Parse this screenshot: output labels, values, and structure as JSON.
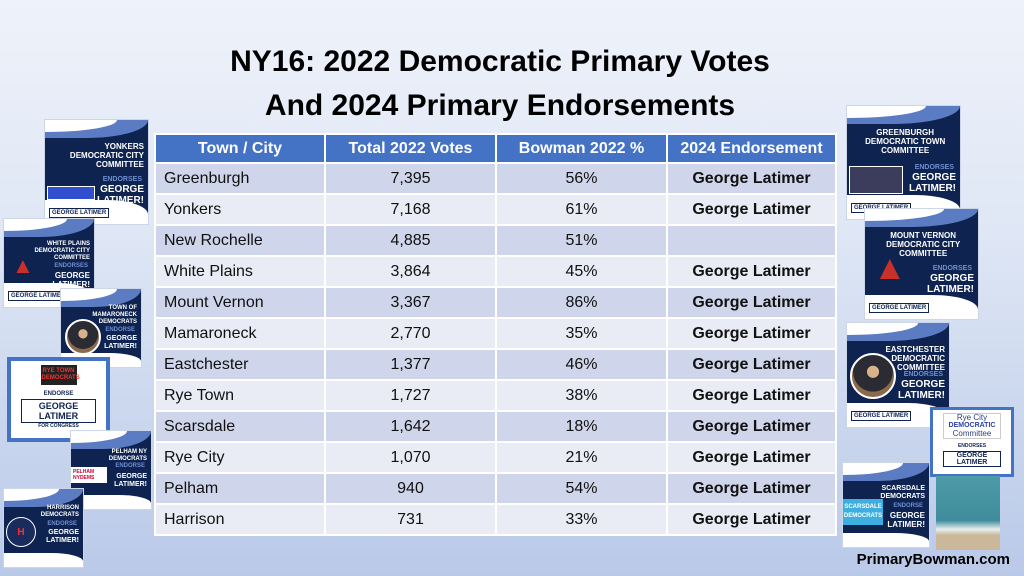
{
  "title_line1": "NY16: 2022 Democratic Primary Votes",
  "title_line2": "And 2024 Primary Endorsements",
  "table": {
    "headers": [
      "Town / City",
      "Total 2022 Votes",
      "Bowman 2022 %",
      "2024 Endorsement"
    ],
    "rows": [
      {
        "town": "Greenburgh",
        "votes": "7,395",
        "pct": "56%",
        "endorsement": "George Latimer"
      },
      {
        "town": "Yonkers",
        "votes": "7,168",
        "pct": "61%",
        "endorsement": "George Latimer"
      },
      {
        "town": "New Rochelle",
        "votes": "4,885",
        "pct": "51%",
        "endorsement": ""
      },
      {
        "town": "White Plains",
        "votes": "3,864",
        "pct": "45%",
        "endorsement": "George Latimer"
      },
      {
        "town": "Mount Vernon",
        "votes": "3,367",
        "pct": "86%",
        "endorsement": "George Latimer"
      },
      {
        "town": "Mamaroneck",
        "votes": "2,770",
        "pct": "35%",
        "endorsement": "George Latimer"
      },
      {
        "town": "Eastchester",
        "votes": "1,377",
        "pct": "46%",
        "endorsement": "George Latimer"
      },
      {
        "town": "Rye Town",
        "votes": "1,727",
        "pct": "38%",
        "endorsement": "George Latimer"
      },
      {
        "town": "Scarsdale",
        "votes": "1,642",
        "pct": "18%",
        "endorsement": "George Latimer"
      },
      {
        "town": "Rye City",
        "votes": "1,070",
        "pct": "21%",
        "endorsement": "George Latimer"
      },
      {
        "town": "Pelham",
        "votes": "940",
        "pct": "54%",
        "endorsement": "George Latimer"
      },
      {
        "town": "Harrison",
        "votes": "731",
        "pct": "33%",
        "endorsement": "George Latimer"
      }
    ]
  },
  "flyers": {
    "yonkers": {
      "org": "YONKERS DEMOCRATIC CITY COMMITTEE",
      "verb": "ENDORSES",
      "name": "GEORGE LATIMER!",
      "logo": "GEORGE LATIMER"
    },
    "white_plains": {
      "org": "WHITE PLAINS DEMOCRATIC CITY COMMITTEE",
      "verb": "ENDORSES",
      "name": "GEORGE LATIMER!",
      "logo": "GEORGE LATIMER"
    },
    "mamaroneck": {
      "org": "TOWN OF MAMARONECK DEMOCRATS",
      "verb": "ENDORSE",
      "name": "GEORGE LATIMER!",
      "logo": "GEORGE LATIMER"
    },
    "rye_town": {
      "org": "RYE TOWN DEMOCRATS",
      "verb": "ENDORSE",
      "name": "GEORGE LATIMER",
      "sub": "FOR CONGRESS"
    },
    "pelham": {
      "org": "PELHAM NY DEMOCRATS",
      "verb": "ENDORSE",
      "name": "GEORGE LATIMER!",
      "logo": "PELHAM NYDEMS"
    },
    "harrison": {
      "org": "HARRISON DEMOCRATS",
      "verb": "ENDORSE",
      "name": "GEORGE LATIMER!",
      "logo": "GEORGE LATIMER"
    },
    "greenburgh": {
      "org": "GREENBURGH DEMOCRATIC TOWN COMMITTEE",
      "verb": "ENDORSES",
      "name": "GEORGE LATIMER!",
      "logo": "GEORGE LATIMER"
    },
    "mount_vernon": {
      "org": "MOUNT VERNON DEMOCRATIC CITY COMMITTEE",
      "verb": "ENDORSES",
      "name": "GEORGE LATIMER!",
      "logo": "GEORGE LATIMER"
    },
    "eastchester": {
      "org": "EASTCHESTER DEMOCRATIC COMMITTEE",
      "verb": "ENDORSES",
      "name": "GEORGE LATIMER!",
      "logo": "GEORGE LATIMER"
    },
    "rye_city": {
      "org_l1": "Rye City",
      "org_l2": "DEMOCRATIC",
      "org_l3": "Committee",
      "verb": "ENDORSES",
      "name": "GEORGE LATIMER"
    },
    "scarsdale": {
      "org": "SCARSDALE DEMOCRATS",
      "verb": "ENDORSE",
      "name": "GEORGE LATIMER!",
      "logo": "SCARSDALE DEMOCRATS"
    }
  },
  "site": "PrimaryBowman.com",
  "colors": {
    "header": "#4472c4",
    "row_odd": "#cfd5ea",
    "row_even": "#e9ebf5",
    "flyer_navy": "#0f2350"
  }
}
